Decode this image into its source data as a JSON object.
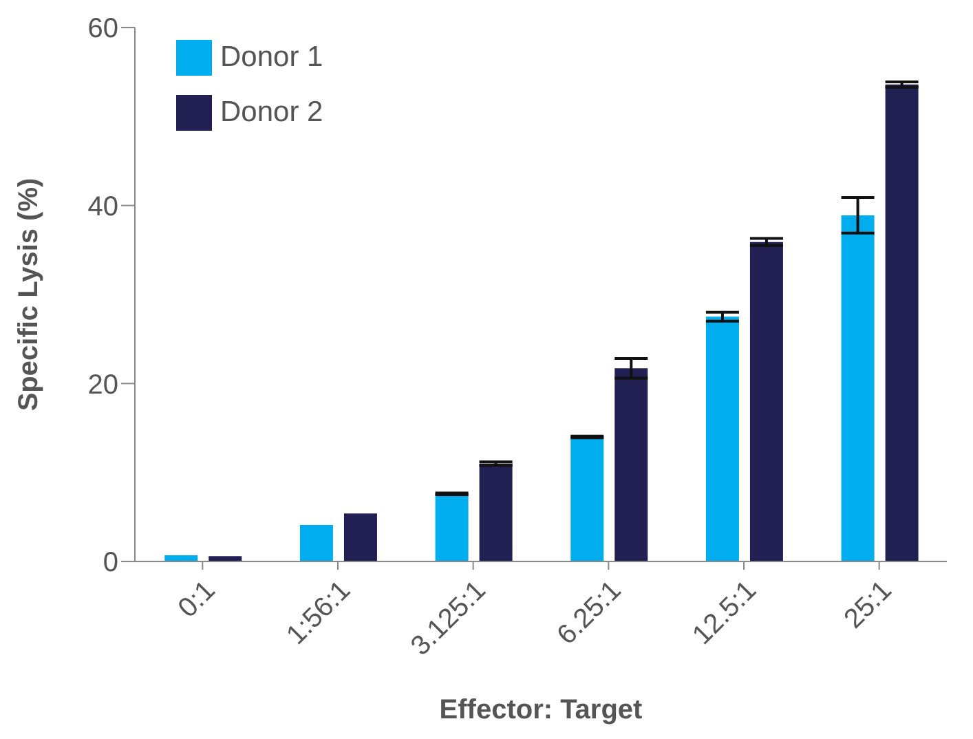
{
  "chart_data": {
    "type": "bar",
    "xlabel": "Effector: Target",
    "ylabel": "Specific Lysis (%)",
    "categories": [
      "0:1",
      "1:56:1",
      "3.125:1",
      "6.25:1",
      "12.5:1",
      "25:1"
    ],
    "series": [
      {
        "name": "Donor 1",
        "color": "#00aeef",
        "values": [
          0.7,
          4.1,
          7.6,
          14.0,
          27.5,
          38.9
        ],
        "errors": [
          null,
          null,
          0.1,
          0.1,
          0.5,
          2.0
        ]
      },
      {
        "name": "Donor 2",
        "color": "#221f53",
        "values": [
          0.6,
          5.4,
          11.0,
          21.7,
          35.9,
          53.6
        ],
        "errors": [
          null,
          null,
          0.2,
          1.1,
          0.4,
          0.3
        ]
      }
    ],
    "ylim": [
      0,
      60
    ],
    "yticks": [
      0,
      20,
      40,
      60
    ],
    "grid": false,
    "legend": "top left"
  }
}
